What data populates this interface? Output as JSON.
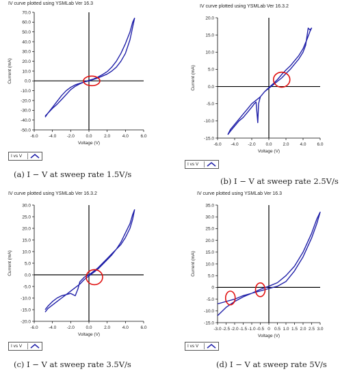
{
  "panels": [
    {
      "title": "IV curve plotted using YSMLab Ver 16.3",
      "legend": "I vs V",
      "caption": "(a) I − V at sweep rate 1.5V/s"
    },
    {
      "title": "IV curve plotted using YSMLab Ver 16.3.2",
      "legend": "I vs V",
      "caption": "(b) I − V at sweep rate 2.5V/s"
    },
    {
      "title": "IV curve plotted using YSMLab Ver 16.3.2",
      "legend": "I vs V",
      "caption": "(c) I − V at sweep rate 3.5V/s"
    },
    {
      "title": "IV curve plotted using YSMLab Ver 16.3",
      "legend": "I vs V",
      "caption": "(d) I − V at sweep rate 5V/s"
    }
  ],
  "colors": {
    "curve": "#1f1fa8",
    "marker": "#e01010",
    "axis": "#000000"
  },
  "chart_data": [
    {
      "type": "line",
      "title": "IV curve plotted using YSMLab Ver 16.3",
      "xlabel": "Voltage (V)",
      "ylabel": "Current (mA)",
      "xlim": [
        -6,
        6
      ],
      "ylim": [
        -50,
        70
      ],
      "xticks": [
        -6,
        -4,
        -2,
        0,
        2,
        4,
        6
      ],
      "xtick_labels": [
        "-6.0",
        "-4.0",
        "-2.0",
        "0.0",
        "2.0",
        "4.0",
        "6.0"
      ],
      "yticks": [
        -50,
        -40,
        -30,
        -20,
        -10,
        0,
        10,
        20,
        30,
        40,
        50,
        60,
        70
      ],
      "ytick_labels": [
        "-50.0",
        "-40.0",
        "-30.0",
        "-20.0",
        "-10.0",
        "0.0",
        "10.0",
        "20.0",
        "30.0",
        "40.0",
        "50.0",
        "60.0",
        "70.0"
      ],
      "grid": false,
      "series": [
        {
          "name": "I vs V",
          "x": [
            -4.8,
            -4.5,
            -4,
            -3.5,
            -3,
            -2.5,
            -2,
            -1.5,
            -1,
            -0.5,
            0,
            0.5,
            1,
            1.5,
            2,
            2.5,
            3,
            3.5,
            4,
            4.5,
            5,
            4.8,
            4.5,
            4,
            3.5,
            3,
            2.5,
            2,
            1.5,
            1,
            0.5,
            0,
            -0.5,
            -1,
            -1.5,
            -2,
            -2.5,
            -3,
            -3.5,
            -4,
            -4.5,
            -4.8
          ],
          "y": [
            -36,
            -33,
            -27,
            -21,
            -15,
            -10,
            -6.5,
            -4,
            -2.5,
            -1,
            0,
            1.5,
            3,
            5,
            7,
            10,
            14,
            20,
            28,
            42,
            64,
            60,
            50,
            38,
            28,
            20,
            14,
            9.5,
            6.5,
            4,
            2,
            0.5,
            -1,
            -3,
            -5.5,
            -9,
            -14,
            -19,
            -24,
            -28,
            -33,
            -37
          ]
        }
      ],
      "annotations": [
        {
          "shape": "circle",
          "x": 0.3,
          "y": 0
        }
      ]
    },
    {
      "type": "line",
      "title": "IV curve plotted using YSMLab Ver 16.3.2",
      "xlabel": "Voltage (V)",
      "ylabel": "Current (mA)",
      "xlim": [
        -6,
        6
      ],
      "ylim": [
        -15,
        20
      ],
      "xticks": [
        -6,
        -4,
        -2,
        0,
        2,
        4,
        6
      ],
      "xtick_labels": [
        "-6.0",
        "-4.0",
        "-2.0",
        "0.0",
        "2.0",
        "4.0",
        "6.0"
      ],
      "yticks": [
        -15,
        -10,
        -5,
        0,
        5,
        10,
        15,
        20
      ],
      "ytick_labels": [
        "-15.0",
        "-10.0",
        "-5.0",
        "0.0",
        "5.0",
        "10.0",
        "15.0",
        "20.0"
      ],
      "grid": false,
      "series": [
        {
          "name": "I vs V",
          "x": [
            -4.8,
            -4.5,
            -4,
            -3.5,
            -3,
            -2.5,
            -2,
            -1.7,
            -1.5,
            -1.3,
            -1.2,
            -1,
            -0.5,
            0,
            0.5,
            1,
            1.5,
            2,
            2.5,
            3,
            3.5,
            4,
            4.3,
            4.6,
            4.8,
            5,
            4.8,
            4.5,
            4,
            3.5,
            3,
            2.5,
            2,
            1.5,
            1,
            0.5,
            0,
            -0.5,
            -1,
            -1.5,
            -2,
            -2.5,
            -3,
            -3.5,
            -4,
            -4.5,
            -4.8
          ],
          "y": [
            -14,
            -13,
            -11.5,
            -10,
            -9,
            -7.5,
            -6,
            -5,
            -4.5,
            -10.5,
            -5,
            -3,
            -1.5,
            -0.5,
            0.5,
            1.5,
            2.5,
            3.8,
            5,
            6.5,
            8,
            10,
            12,
            17,
            16.5,
            17,
            16,
            14,
            11,
            9,
            7.5,
            6,
            4.8,
            3.5,
            2,
            0.8,
            -0.3,
            -1.5,
            -3,
            -4,
            -5,
            -6.5,
            -8,
            -9.5,
            -11,
            -12.5,
            -14
          ]
        }
      ],
      "annotations": [
        {
          "shape": "circle",
          "x": 1.5,
          "y": 2
        }
      ]
    },
    {
      "type": "line",
      "title": "IV curve plotted using YSMLab Ver 16.3.2",
      "xlabel": "Voltage (V)",
      "ylabel": "Current (mA)",
      "xlim": [
        -6,
        6
      ],
      "ylim": [
        -20,
        30
      ],
      "xticks": [
        -6,
        -4,
        -2,
        0,
        2,
        4,
        6
      ],
      "xtick_labels": [
        "-6.0",
        "-4.0",
        "-2.0",
        "0.0",
        "2.0",
        "4.0",
        "6.0"
      ],
      "yticks": [
        -20,
        -15,
        -10,
        -5,
        0,
        5,
        10,
        15,
        20,
        25,
        30
      ],
      "ytick_labels": [
        "-20.0",
        "-15.0",
        "-10.0",
        "-5.0",
        "0.0",
        "5.0",
        "10.0",
        "15.0",
        "20.0",
        "25.0",
        "30.0"
      ],
      "grid": false,
      "series": [
        {
          "name": "I vs V",
          "x": [
            -4.8,
            -4.5,
            -4,
            -3.5,
            -3,
            -2.5,
            -2,
            -1.5,
            -1.2,
            -1,
            -0.5,
            0,
            0.5,
            1,
            1.5,
            2,
            2.5,
            3,
            3.5,
            4,
            4.5,
            4.8,
            5,
            4.8,
            4.5,
            4,
            3.5,
            3,
            2.5,
            2,
            1.5,
            1,
            0.5,
            0,
            -0.5,
            -1,
            -1.5,
            -2,
            -2.5,
            -3,
            -3.5,
            -4,
            -4.5,
            -4.8
          ],
          "y": [
            -15,
            -13.5,
            -11.5,
            -10,
            -9,
            -8.5,
            -8,
            -9,
            -6,
            -3,
            -1,
            0,
            1.5,
            3,
            5,
            7,
            9,
            11,
            13,
            16,
            20,
            24,
            28,
            26,
            22,
            18,
            14,
            11,
            8.5,
            6.5,
            4.5,
            2.5,
            1,
            -0.5,
            -2,
            -4,
            -5.5,
            -7,
            -8.5,
            -10,
            -11.5,
            -13,
            -14.5,
            -16
          ]
        }
      ],
      "annotations": [
        {
          "shape": "circle",
          "x": 0.6,
          "y": -1
        }
      ]
    },
    {
      "type": "line",
      "title": "IV curve plotted using YSMLab Ver 16.3",
      "xlabel": "Voltage (V)",
      "ylabel": "Current (mA)",
      "xlim": [
        -3,
        3
      ],
      "ylim": [
        -15,
        35
      ],
      "xticks": [
        -3,
        -2.5,
        -2,
        -1.5,
        -1,
        -0.5,
        0,
        0.5,
        1,
        1.5,
        2,
        2.5,
        3
      ],
      "xtick_labels": [
        "-3.0",
        "-2.5",
        "-2.0",
        "-1.5",
        "-1.0",
        "-0.5",
        "0",
        "0.5",
        "1.0",
        "1.5",
        "2.0",
        "2.5",
        "3.0"
      ],
      "yticks": [
        -15,
        -10,
        -5,
        0,
        5,
        10,
        15,
        20,
        25,
        30,
        35
      ],
      "ytick_labels": [
        "-15.0",
        "-10.0",
        "-5.0",
        "0",
        "5.0",
        "10.0",
        "15.0",
        "20.0",
        "25.0",
        "30.0",
        "35.0"
      ],
      "grid": false,
      "series": [
        {
          "name": "I vs V",
          "x": [
            -3,
            -2.5,
            -2,
            -1.5,
            -1,
            -0.5,
            0,
            0.5,
            1,
            1.5,
            2,
            2.5,
            2.8,
            3,
            2.8,
            2.5,
            2,
            1.5,
            1,
            0.5,
            0,
            -0.5,
            -1,
            -1.5,
            -2,
            -2.5,
            -3
          ],
          "y": [
            -7,
            -6,
            -5,
            -3.5,
            -2.5,
            -1.5,
            -0.5,
            0.5,
            2.5,
            7,
            13,
            21,
            27,
            32,
            29,
            23,
            15,
            9,
            5,
            2,
            0.5,
            -0.8,
            -2.5,
            -4,
            -6,
            -8.5,
            -12
          ]
        }
      ],
      "annotations": [
        {
          "shape": "ellipse",
          "x": -2.25,
          "y": -4.5
        },
        {
          "shape": "ellipse",
          "x": -0.5,
          "y": -1
        }
      ]
    }
  ]
}
